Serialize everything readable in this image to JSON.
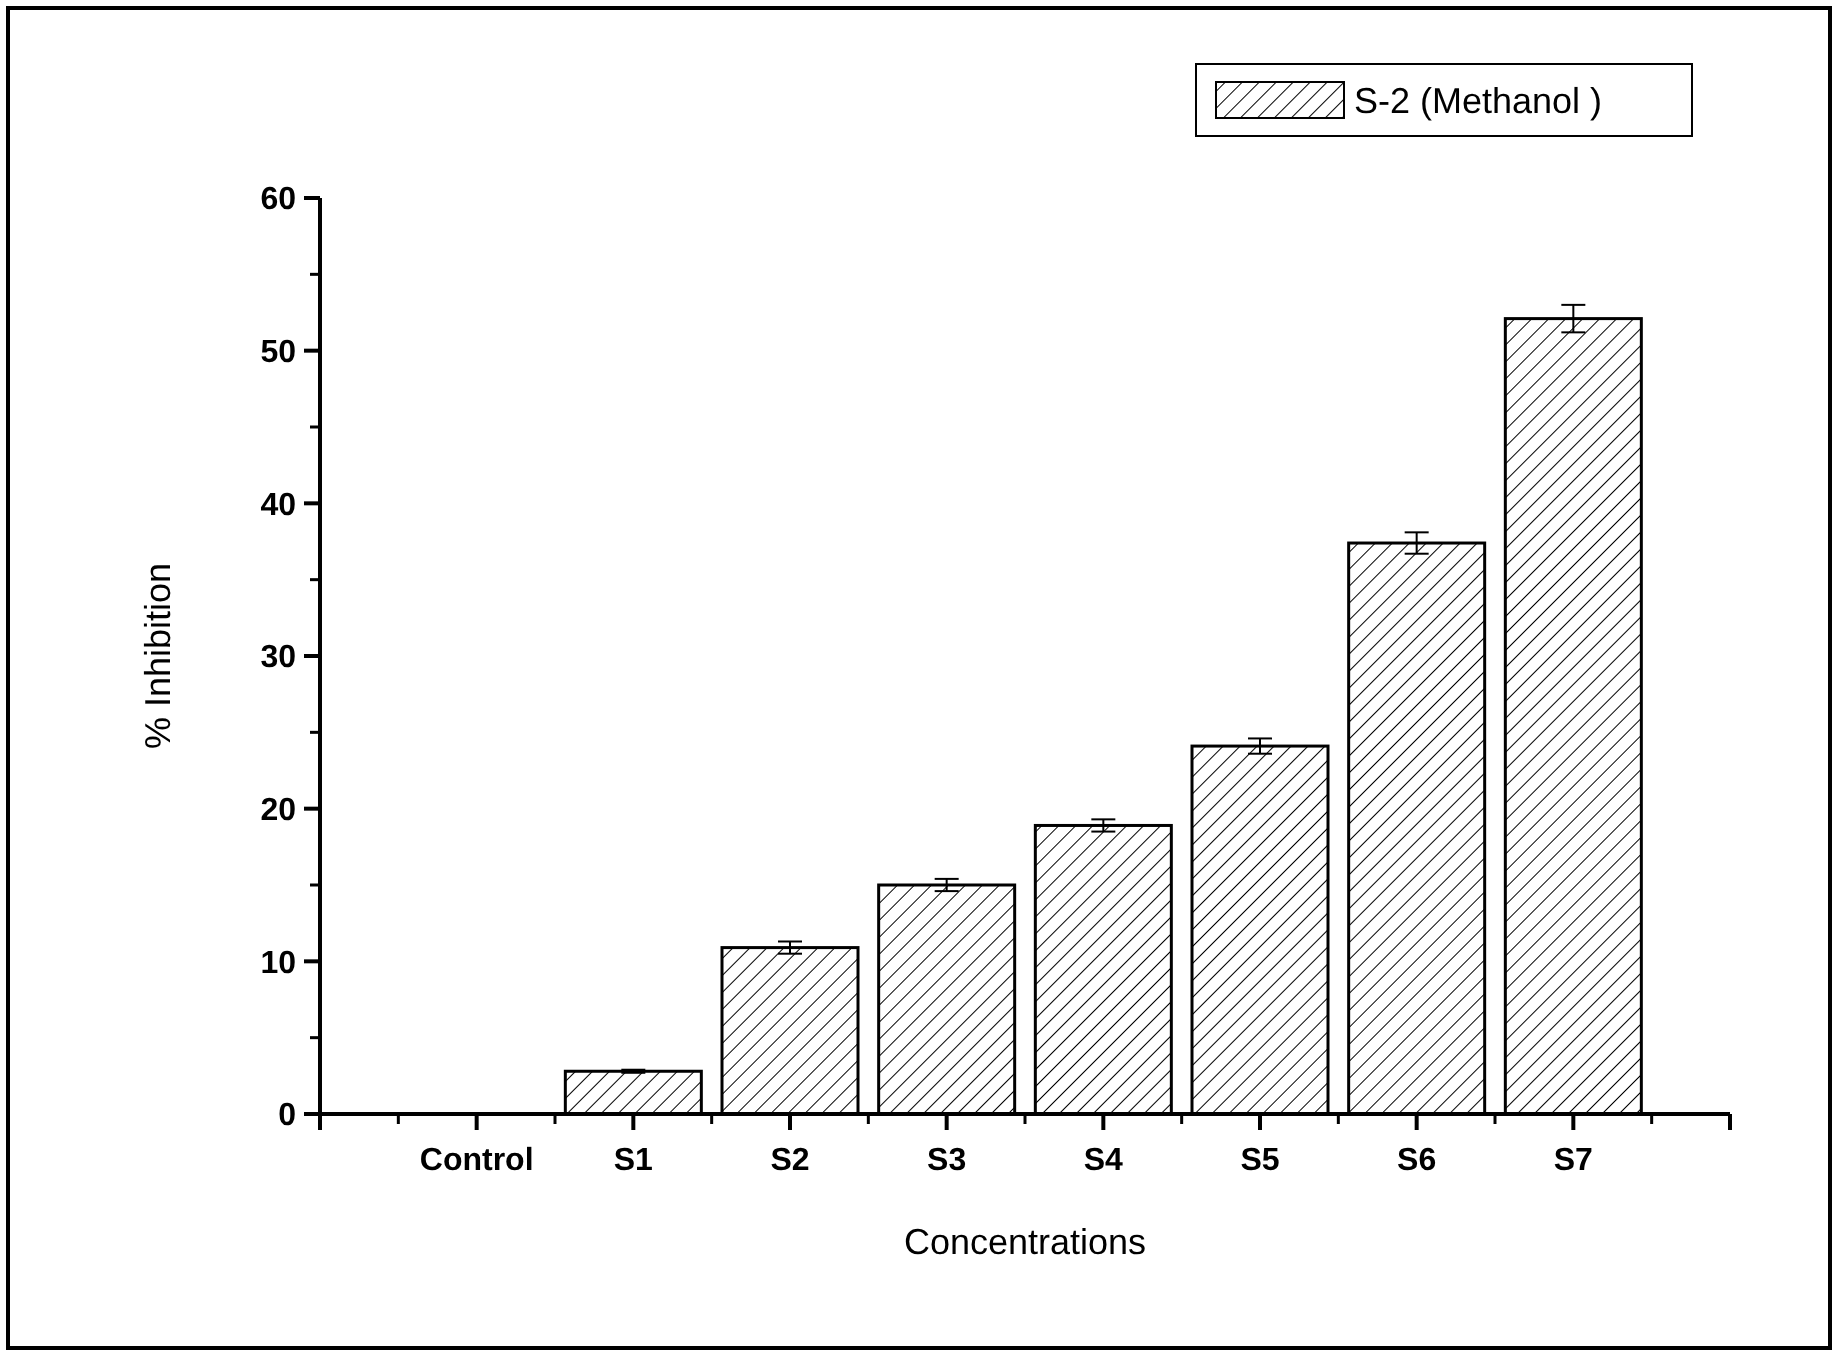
{
  "chart_data": {
    "type": "bar",
    "xlabel": "Concentrations",
    "ylabel": "% Inhibition",
    "categories": [
      "Control",
      "S1",
      "S2",
      "S3",
      "S4",
      "S5",
      "S6",
      "S7"
    ],
    "series": [
      {
        "name": "S-2 (Methanol )",
        "color": "#000000",
        "values": [
          0,
          2.8,
          10.9,
          15.0,
          18.9,
          24.1,
          37.4,
          52.1
        ],
        "errors": [
          null,
          0.1,
          0.4,
          0.4,
          0.4,
          0.5,
          0.7,
          0.9
        ]
      }
    ],
    "ylim": [
      0,
      60
    ],
    "yticks": [
      0,
      10,
      20,
      30,
      40,
      50,
      60
    ],
    "grid": false,
    "legend": "top right"
  }
}
